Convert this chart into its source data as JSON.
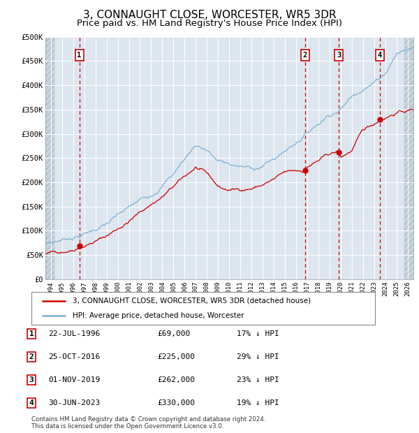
{
  "title": "3, CONNAUGHT CLOSE, WORCESTER, WR5 3DR",
  "subtitle": "Price paid vs. HM Land Registry's House Price Index (HPI)",
  "title_fontsize": 11,
  "subtitle_fontsize": 9.5,
  "xlim": [
    1993.5,
    2026.5
  ],
  "ylim": [
    0,
    500000
  ],
  "yticks": [
    0,
    50000,
    100000,
    150000,
    200000,
    250000,
    300000,
    350000,
    400000,
    450000,
    500000
  ],
  "ytick_labels": [
    "£0",
    "£50K",
    "£100K",
    "£150K",
    "£200K",
    "£250K",
    "£300K",
    "£350K",
    "£400K",
    "£450K",
    "£500K"
  ],
  "xticks": [
    1994,
    1995,
    1996,
    1997,
    1998,
    1999,
    2000,
    2001,
    2002,
    2003,
    2004,
    2005,
    2006,
    2007,
    2008,
    2009,
    2010,
    2011,
    2012,
    2013,
    2014,
    2015,
    2016,
    2017,
    2018,
    2019,
    2020,
    2021,
    2022,
    2023,
    2024,
    2025,
    2026
  ],
  "sale_dates": [
    1996.554,
    2016.812,
    2019.831,
    2023.497
  ],
  "sale_prices": [
    69000,
    225000,
    262000,
    330000
  ],
  "sale_labels": [
    "1",
    "2",
    "3",
    "4"
  ],
  "hpi_color": "#7BAFD4",
  "sale_color": "#CC0000",
  "dashed_color": "#CC0000",
  "bg_color": "#DDE6EF",
  "hatch_bg_color": "#C8D4DE",
  "grid_color": "#FFFFFF",
  "legend_label_sale": "3, CONNAUGHT CLOSE, WORCESTER, WR5 3DR (detached house)",
  "legend_label_hpi": "HPI: Average price, detached house, Worcester",
  "table_rows": [
    [
      "1",
      "22-JUL-1996",
      "£69,000",
      "17% ↓ HPI"
    ],
    [
      "2",
      "25-OCT-2016",
      "£225,000",
      "29% ↓ HPI"
    ],
    [
      "3",
      "01-NOV-2019",
      "£262,000",
      "23% ↓ HPI"
    ],
    [
      "4",
      "30-JUN-2023",
      "£330,000",
      "19% ↓ HPI"
    ]
  ],
  "footer": "Contains HM Land Registry data © Crown copyright and database right 2024.\nThis data is licensed under the Open Government Licence v3.0.",
  "hpi_start_year": 1993.5,
  "hpi_end_year": 2026.5,
  "hatch_left_end": 1994.3,
  "hatch_right_start": 2025.7
}
